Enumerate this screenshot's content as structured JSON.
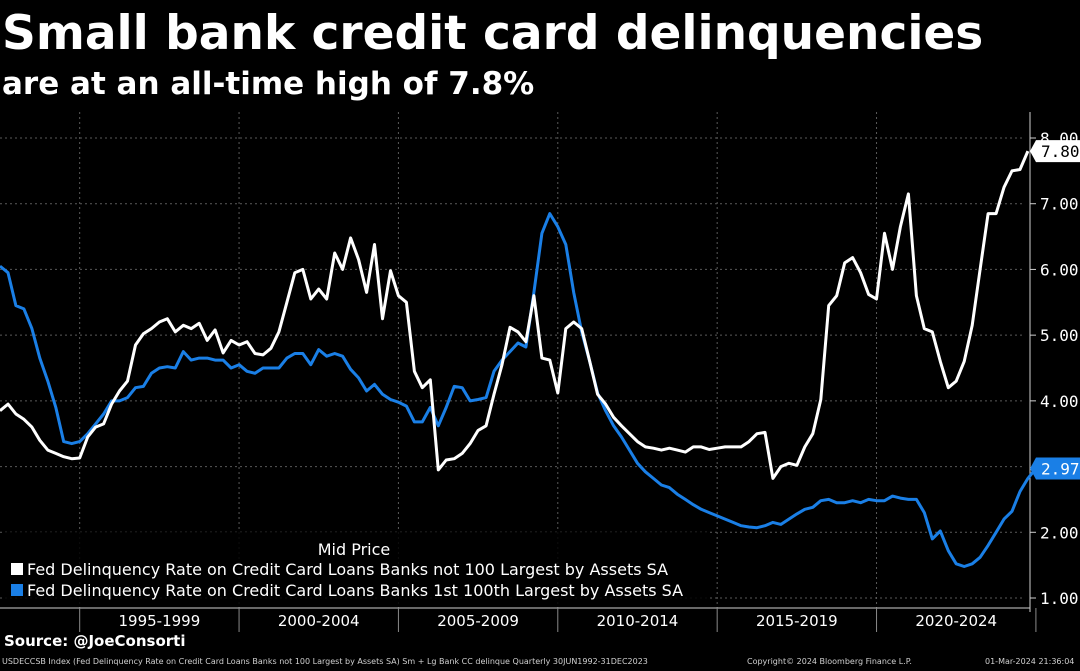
{
  "header": {
    "title": "Small bank credit card delinquencies",
    "subtitle": "are at an all-time high of 7.8%"
  },
  "footer": {
    "source": "Source: @JoeConsorti",
    "index_note": "USDECCSB Index (Fed Delinquency Rate on Credit Card Loans Banks not 100 Largest by Assets SA) Sm + Lg Bank CC delinque  Quarterly 30JUN1992-31DEC2023",
    "copyright": "Copyright© 2024 Bloomberg Finance L.P.",
    "timestamp": "01-Mar-2024 21:36:04"
  },
  "chart_data": {
    "type": "line",
    "title": "Small bank credit card delinquencies",
    "subtitle": "are at an all-time high of 7.8%",
    "legend_title": "Mid Price",
    "legend_position": "bottom-left",
    "grid": true,
    "x_start": 1992.5,
    "x_end": 2024.25,
    "x_period_labels": [
      "1995-1999",
      "2000-2004",
      "2005-2009",
      "2010-2014",
      "2015-2019",
      "2020-2024"
    ],
    "yticks": [
      "1.00",
      "2.00",
      "2.97",
      "4.00",
      "5.00",
      "6.00",
      "7.00",
      "7.80",
      "8.00"
    ],
    "ylim": [
      0.9,
      8.2
    ],
    "colors": {
      "small_bank": "#ffffff",
      "large_bank": "#1a7fe6"
    },
    "series": [
      {
        "name": "Fed Delinquency Rate on Credit Card Loans Banks not 100 Largest by Assets SA",
        "color": "#ffffff",
        "last_value": "7.80",
        "x_start": 1992.5,
        "step": 0.25,
        "values": [
          3.85,
          3.95,
          3.8,
          3.72,
          3.6,
          3.4,
          3.25,
          3.2,
          3.15,
          3.12,
          3.13,
          3.45,
          3.6,
          3.65,
          3.95,
          4.15,
          4.3,
          4.85,
          5.02,
          5.1,
          5.2,
          5.25,
          5.05,
          5.15,
          5.1,
          5.18,
          4.92,
          5.08,
          4.73,
          4.92,
          4.85,
          4.9,
          4.72,
          4.7,
          4.8,
          5.05,
          5.5,
          5.95,
          6.0,
          5.55,
          5.7,
          5.55,
          6.25,
          6.0,
          6.48,
          6.15,
          5.65,
          6.38,
          5.25,
          5.98,
          5.6,
          5.5,
          4.45,
          4.2,
          4.32,
          2.95,
          3.1,
          3.12,
          3.2,
          3.35,
          3.55,
          3.62,
          4.1,
          4.55,
          5.12,
          5.05,
          4.9,
          5.6,
          4.65,
          4.62,
          4.12,
          5.1,
          5.2,
          5.1,
          4.6,
          4.1,
          3.95,
          3.75,
          3.62,
          3.5,
          3.38,
          3.3,
          3.28,
          3.25,
          3.28,
          3.25,
          3.22,
          3.3,
          3.3,
          3.26,
          3.28,
          3.3,
          3.3,
          3.3,
          3.38,
          3.5,
          3.52,
          2.82,
          3.0,
          3.05,
          3.02,
          3.3,
          3.5,
          4.02,
          5.45,
          5.6,
          6.1,
          6.18,
          5.95,
          5.62,
          5.55,
          6.55,
          6.0,
          6.65,
          7.15,
          5.6,
          5.1,
          5.05,
          4.6,
          4.2,
          4.3,
          4.6,
          5.15,
          6.0,
          6.85,
          6.85,
          7.25,
          7.5,
          7.52,
          7.8
        ]
      },
      {
        "name": "Fed Delinquency Rate on Credit Card Loans Banks 1st 100th Largest by Assets SA",
        "color": "#1a7fe6",
        "last_value": "2.97",
        "x_start": 1992.5,
        "step": 0.25,
        "values": [
          6.05,
          5.95,
          5.45,
          5.4,
          5.1,
          4.65,
          4.3,
          3.9,
          3.38,
          3.35,
          3.38,
          3.5,
          3.65,
          3.8,
          4.0,
          4.0,
          4.05,
          4.2,
          4.22,
          4.42,
          4.5,
          4.52,
          4.5,
          4.75,
          4.62,
          4.65,
          4.65,
          4.62,
          4.62,
          4.5,
          4.55,
          4.45,
          4.42,
          4.5,
          4.5,
          4.5,
          4.65,
          4.72,
          4.72,
          4.55,
          4.78,
          4.68,
          4.72,
          4.68,
          4.48,
          4.35,
          4.15,
          4.25,
          4.1,
          4.02,
          3.98,
          3.92,
          3.68,
          3.68,
          3.9,
          3.62,
          3.9,
          4.22,
          4.2,
          4.0,
          4.02,
          4.05,
          4.45,
          4.62,
          4.75,
          4.88,
          4.82,
          5.65,
          6.55,
          6.85,
          6.65,
          6.38,
          5.65,
          5.05,
          4.6,
          4.12,
          3.85,
          3.62,
          3.45,
          3.25,
          3.05,
          2.92,
          2.82,
          2.72,
          2.68,
          2.58,
          2.5,
          2.42,
          2.35,
          2.3,
          2.25,
          2.2,
          2.15,
          2.1,
          2.08,
          2.07,
          2.1,
          2.15,
          2.12,
          2.2,
          2.28,
          2.35,
          2.38,
          2.48,
          2.5,
          2.45,
          2.45,
          2.48,
          2.45,
          2.5,
          2.48,
          2.48,
          2.55,
          2.52,
          2.5,
          2.5,
          2.3,
          1.9,
          2.02,
          1.72,
          1.52,
          1.48,
          1.52,
          1.62,
          1.8,
          2.0,
          2.2,
          2.32,
          2.62,
          2.82,
          2.97
        ]
      }
    ]
  }
}
